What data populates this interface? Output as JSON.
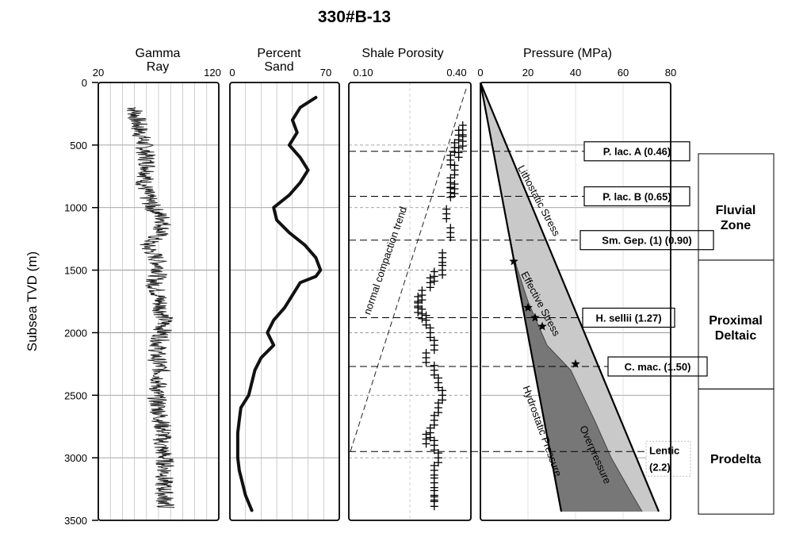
{
  "chart_data": {
    "type": "line",
    "title": "330#B-13",
    "ylabel": "Subsea TVD (m)",
    "ylim": [
      0,
      3500
    ],
    "y_ticks": [
      "0",
      "500",
      "1000",
      "1500",
      "2000",
      "2500",
      "3000",
      "3500"
    ],
    "y_tick_values": [
      0,
      500,
      1000,
      1500,
      2000,
      2500,
      3000,
      3500
    ],
    "panels": [
      {
        "title_line1": "Gamma",
        "title_line2": "Ray",
        "xlim": [
          20,
          120
        ],
        "x_ticks": [
          "20",
          "120"
        ],
        "series": [
          {
            "style": "noisy-log",
            "depth": [
              200,
              300,
              400,
              500,
              600,
              700,
              800,
              900,
              1000,
              1100,
              1200,
              1300,
              1400,
              1500,
              1600,
              1700,
              1800,
              1900,
              2000,
              2100,
              2200,
              2300,
              2400,
              2500,
              2600,
              2700,
              2800,
              2900,
              3000,
              3100,
              3200,
              3300,
              3400
            ],
            "values": [
              50,
              52,
              55,
              58,
              60,
              62,
              58,
              60,
              65,
              75,
              72,
              60,
              68,
              72,
              66,
              70,
              72,
              75,
              73,
              70,
              68,
              72,
              70,
              68,
              70,
              72,
              74,
              72,
              75,
              76,
              74,
              75,
              76
            ]
          }
        ]
      },
      {
        "title_line1": "Percent",
        "title_line2": "Sand",
        "xlim": [
          0,
          70
        ],
        "x_ticks": [
          "0",
          "70"
        ],
        "series": [
          {
            "style": "thick-line",
            "depth": [
              120,
              200,
              300,
              400,
              500,
              600,
              700,
              800,
              900,
              1000,
              1100,
              1200,
              1300,
              1400,
              1500,
              1550,
              1600,
              1700,
              1800,
              1900,
              2000,
              2100,
              2200,
              2300,
              2400,
              2500,
              2600,
              2700,
              2800,
              2900,
              3000,
              3100,
              3200,
              3300,
              3420
            ],
            "values": [
              55,
              45,
              40,
              43,
              38,
              45,
              50,
              45,
              38,
              28,
              30,
              38,
              48,
              55,
              58,
              55,
              45,
              40,
              35,
              28,
              24,
              28,
              20,
              16,
              14,
              12,
              7,
              6,
              5,
              5,
              5,
              6,
              8,
              10,
              14
            ]
          }
        ]
      },
      {
        "title_line1": "Shale Porosity",
        "xlim": [
          0.1,
          0.4
        ],
        "x_ticks": [
          "0.10",
          "0.40"
        ],
        "annotation": "normal compaction trend",
        "series": [
          {
            "style": "crosses",
            "depth": [
              380,
              420,
              470,
              520,
              560,
              620,
              700,
              800,
              850,
              880,
              1050,
              1200,
              1400,
              1500,
              1550,
              1600,
              1700,
              1750,
              1800,
              1850,
              1900,
              2000,
              2100,
              2200,
              2300,
              2400,
              2500,
              2600,
              2700,
              2800,
              2850,
              2900,
              3000,
              3100,
              3200,
              3300,
              3350
            ],
            "values": [
              0.38,
              0.37,
              0.38,
              0.36,
              0.37,
              0.35,
              0.36,
              0.35,
              0.36,
              0.35,
              0.34,
              0.35,
              0.33,
              0.33,
              0.31,
              0.3,
              0.28,
              0.27,
              0.27,
              0.28,
              0.29,
              0.3,
              0.31,
              0.29,
              0.31,
              0.32,
              0.33,
              0.32,
              0.31,
              0.3,
              0.29,
              0.31,
              0.32,
              0.31,
              0.31,
              0.31,
              0.31
            ]
          }
        ]
      },
      {
        "title_line1": "Pressure (MPa)",
        "xlim": [
          0,
          80
        ],
        "x_ticks": [
          "0",
          "20",
          "40",
          "60",
          "80"
        ],
        "lines": {
          "lithostatic": {
            "label": "Lithostatic Stress",
            "depth": [
              0,
              3430
            ],
            "values": [
              0,
              75
            ]
          },
          "hydrostatic": {
            "label": "Hydrostatic Pressure",
            "depth": [
              0,
              3430
            ],
            "values": [
              0,
              34
            ]
          },
          "pore": {
            "label": "Effective Stress",
            "depth": [
              0,
              1400,
              1750,
              2100,
              2300,
              2700,
              3000,
              3300,
              3430
            ],
            "values": [
              0,
              14,
              20,
              28,
              38,
              48,
              55,
              64,
              68
            ]
          }
        },
        "overpressure_label": "Overpressure",
        "markers": {
          "depth": [
            1430,
            1800,
            1880,
            1950,
            2250
          ],
          "values": [
            14,
            20,
            23,
            26,
            40
          ]
        }
      }
    ],
    "biostratigraphy": [
      {
        "label": "P. lac. A (0.46)",
        "depth": 550
      },
      {
        "label": "P. lac. B (0.65)",
        "depth": 910
      },
      {
        "label": "Sm. Gep. (1) (0.90)",
        "depth": 1260
      },
      {
        "label": "H. sellii (1.27)",
        "depth": 1880
      },
      {
        "label": "C. mac. (1.50)",
        "depth": 2270
      },
      {
        "label_line1": "Lentic",
        "label_line2": "(2.2)",
        "depth": 2950
      }
    ],
    "zones": [
      {
        "line1": "Fluvial",
        "line2": "Zone",
        "top": 570,
        "bottom": 1420
      },
      {
        "line1": "Proximal",
        "line2": "Deltaic",
        "top": 1420,
        "bottom": 2450
      },
      {
        "line1": "Prodelta",
        "line2": "",
        "top": 2450,
        "bottom": 3450
      }
    ]
  }
}
